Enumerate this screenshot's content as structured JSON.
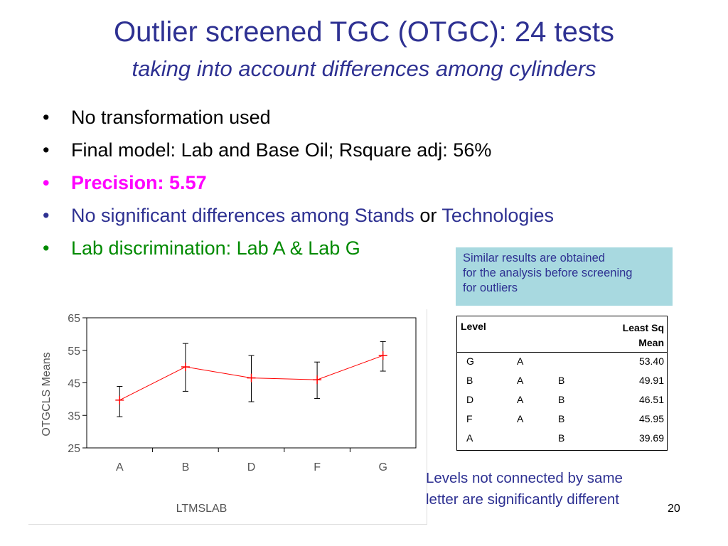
{
  "slide": {
    "title": "Outlier screened TGC (OTGC): 24 tests",
    "subtitle": "taking into account differences among cylinders",
    "bullets": [
      {
        "text": "No transformation used"
      },
      {
        "text": "Final model: Lab and Base Oil; Rsquare adj: 56%"
      },
      {
        "text": "Precision: 5.57"
      },
      {
        "text_a": "No significant differences among Stands",
        "text_b": "or",
        "text_c": "Technologies"
      },
      {
        "text": "Lab discrimination: Lab A & Lab G"
      }
    ],
    "bullet_symbol": "•",
    "note": [
      "Similar results are obtained",
      "for the analysis before screening",
      "for outliers"
    ],
    "footer_note": [
      "Levels not connected by same",
      "letter are significantly different"
    ],
    "page_number": "20",
    "colors": {
      "title": "#2e3192",
      "highlight": "#ff00ff",
      "green": "#008a00",
      "note_bg": "#a8d9e0",
      "series": "#ff0000"
    }
  },
  "table": {
    "headers": {
      "level": "Level",
      "lsm_line1": "Least Sq",
      "lsm_line2": "Mean"
    },
    "rows": [
      {
        "level": "G",
        "g1": "A",
        "g2": "",
        "mean": "53.40"
      },
      {
        "level": "B",
        "g1": "A",
        "g2": "B",
        "mean": "49.91"
      },
      {
        "level": "D",
        "g1": "A",
        "g2": "B",
        "mean": "46.51"
      },
      {
        "level": "F",
        "g1": "A",
        "g2": "B",
        "mean": "45.95"
      },
      {
        "level": "A",
        "g1": "",
        "g2": "B",
        "mean": "39.69"
      }
    ]
  },
  "chart_data": {
    "type": "line",
    "categories": [
      "A",
      "B",
      "D",
      "F",
      "G"
    ],
    "series": [
      {
        "values": [
          39.69,
          49.91,
          46.51,
          45.95,
          53.4
        ],
        "err_low": [
          34.6,
          42.4,
          39.2,
          40.2,
          48.6
        ],
        "err_high": [
          43.9,
          57.1,
          53.4,
          51.4,
          57.7
        ]
      }
    ],
    "xlabel": "LTMSLAB",
    "ylabel": "OTGCLS Means",
    "ylim": [
      25,
      65
    ],
    "yticks": [
      25,
      35,
      45,
      55,
      65
    ],
    "grid": false
  }
}
